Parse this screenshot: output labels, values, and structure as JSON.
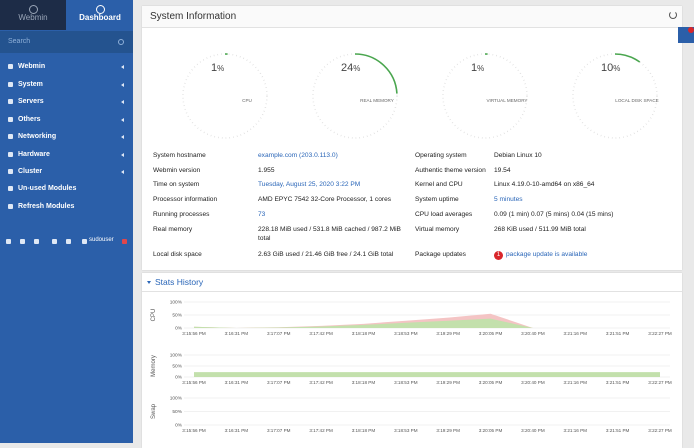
{
  "sidebar": {
    "tabs": [
      "Webmin",
      "Dashboard"
    ],
    "search_placeholder": "Search",
    "menu": [
      "Webmin",
      "System",
      "Servers",
      "Others",
      "Networking",
      "Hardware",
      "Cluster",
      "Un-used Modules",
      "Refresh Modules"
    ],
    "user": "sudouser"
  },
  "system_information": {
    "title": "System Information",
    "gauges": [
      {
        "value": 1,
        "unit": "%",
        "label": "CPU"
      },
      {
        "value": 24,
        "unit": "%",
        "label": "REAL MEMORY"
      },
      {
        "value": 1,
        "unit": "%",
        "label": "VIRTUAL MEMORY"
      },
      {
        "value": 10,
        "unit": "%",
        "label": "LOCAL DISK SPACE"
      }
    ],
    "info_left": [
      {
        "label": "System hostname",
        "value": "example.com (203.0.113.0)",
        "link": true
      },
      {
        "label": "Webmin version",
        "value": "1.955"
      },
      {
        "label": "Time on system",
        "value": "Tuesday, August 25, 2020 3:22 PM",
        "link": true
      },
      {
        "label": "Processor information",
        "value": "AMD EPYC 7542 32-Core Processor, 1 cores"
      },
      {
        "label": "Running processes",
        "value": "73",
        "link": true
      },
      {
        "label": "Real memory",
        "value": "228.18 MiB used / 531.8 MiB cached / 987.2 MiB total"
      },
      {
        "label": "Local disk space",
        "value": "2.63 GiB used / 21.46 GiB free / 24.1 GiB total"
      }
    ],
    "info_right": [
      {
        "label": "Operating system",
        "value": "Debian Linux 10"
      },
      {
        "label": "Authentic theme version",
        "value": "19.54"
      },
      {
        "label": "Kernel and CPU",
        "value": "Linux 4.19.0-10-amd64 on x86_64"
      },
      {
        "label": "System uptime",
        "value": "5 minutes",
        "link": true
      },
      {
        "label": "CPU load averages",
        "value": "0.09 (1 min) 0.07 (5 mins) 0.04 (15 mins)"
      },
      {
        "label": "Virtual memory",
        "value": "268 KiB used / 511.99 MiB total"
      },
      {
        "label": "Package updates",
        "badge": "1",
        "value": "package update is available",
        "link": true
      }
    ]
  },
  "stats_history": {
    "title": "Stats History",
    "times": [
      "3:15:56 PM",
      "3:16:31 PM",
      "3:17:07 PM",
      "3:17:42 PM",
      "3:18:18 PM",
      "3:18:53 PM",
      "3:19:29 PM",
      "3:20:05 PM",
      "3:20:40 PM",
      "3:21:16 PM",
      "3:21:51 PM",
      "3:22:27 PM"
    ],
    "ylim": [
      0,
      100
    ],
    "yticks": [
      {
        "value": 100,
        "label": "100%"
      },
      {
        "value": 50,
        "label": "50%"
      },
      {
        "value": 0,
        "label": "0%"
      }
    ],
    "charts": [
      {
        "label": "CPU",
        "series": [
          {
            "color": "#f4c4c4",
            "values": [
              5,
              0,
              3,
              8,
              16,
              28,
              40,
              55,
              0,
              0,
              0,
              0
            ]
          },
          {
            "color": "#c3e0ac",
            "values": [
              5,
              0,
              2,
              6,
              12,
              20,
              28,
              36,
              0,
              0,
              0,
              0
            ]
          }
        ]
      },
      {
        "label": "Memory",
        "series": [
          {
            "color": "#c3e0ac",
            "values": [
              22,
              22,
              22,
              22,
              22,
              22,
              22,
              22,
              22,
              22,
              22,
              22
            ]
          }
        ]
      },
      {
        "label": "Swap",
        "series": [
          {
            "color": "#c3e0ac",
            "values": [
              0,
              0,
              0,
              0,
              0,
              0,
              0,
              0,
              0,
              0,
              0,
              0
            ]
          }
        ]
      }
    ]
  }
}
